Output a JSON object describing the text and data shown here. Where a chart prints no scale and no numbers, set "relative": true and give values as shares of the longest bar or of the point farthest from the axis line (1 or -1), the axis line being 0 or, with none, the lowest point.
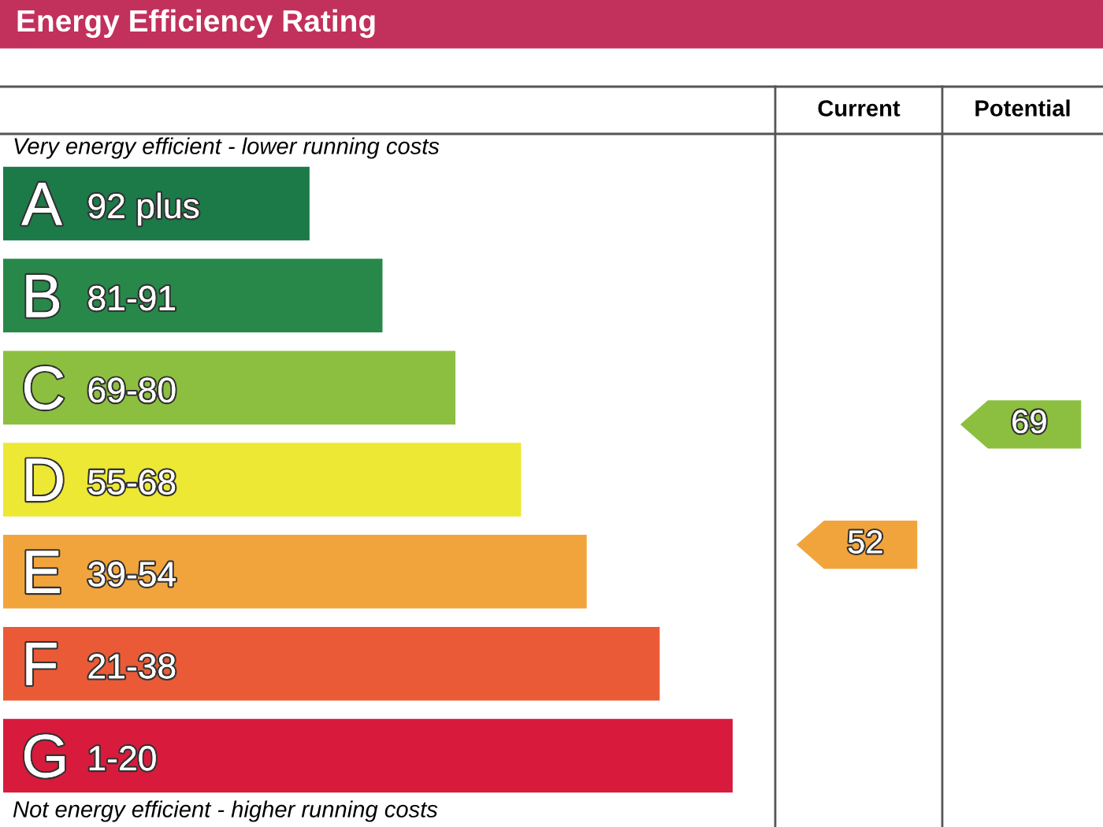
{
  "chart_data": {
    "type": "bar",
    "orientation": "horizontal",
    "relative": true,
    "title": "Energy Efficiency Rating",
    "categories": [
      "A 92 plus",
      "B 81-91",
      "C 69-80",
      "D 55-68",
      "E 39-54",
      "F 21-38",
      "G 1-20"
    ],
    "values": [
      0.42,
      0.52,
      0.62,
      0.71,
      0.8,
      0.9,
      1
    ],
    "colors": [
      "#1b7a48",
      "#27884a",
      "#8cbf3f",
      "#ece833",
      "#f2a43c",
      "#eb5a36",
      "#d81b3c"
    ],
    "annotations": [
      "Very energy efficient - lower running costs",
      "Not energy efficient - higher running costs",
      "Current",
      "Potential",
      "52",
      "69"
    ]
  }
}
